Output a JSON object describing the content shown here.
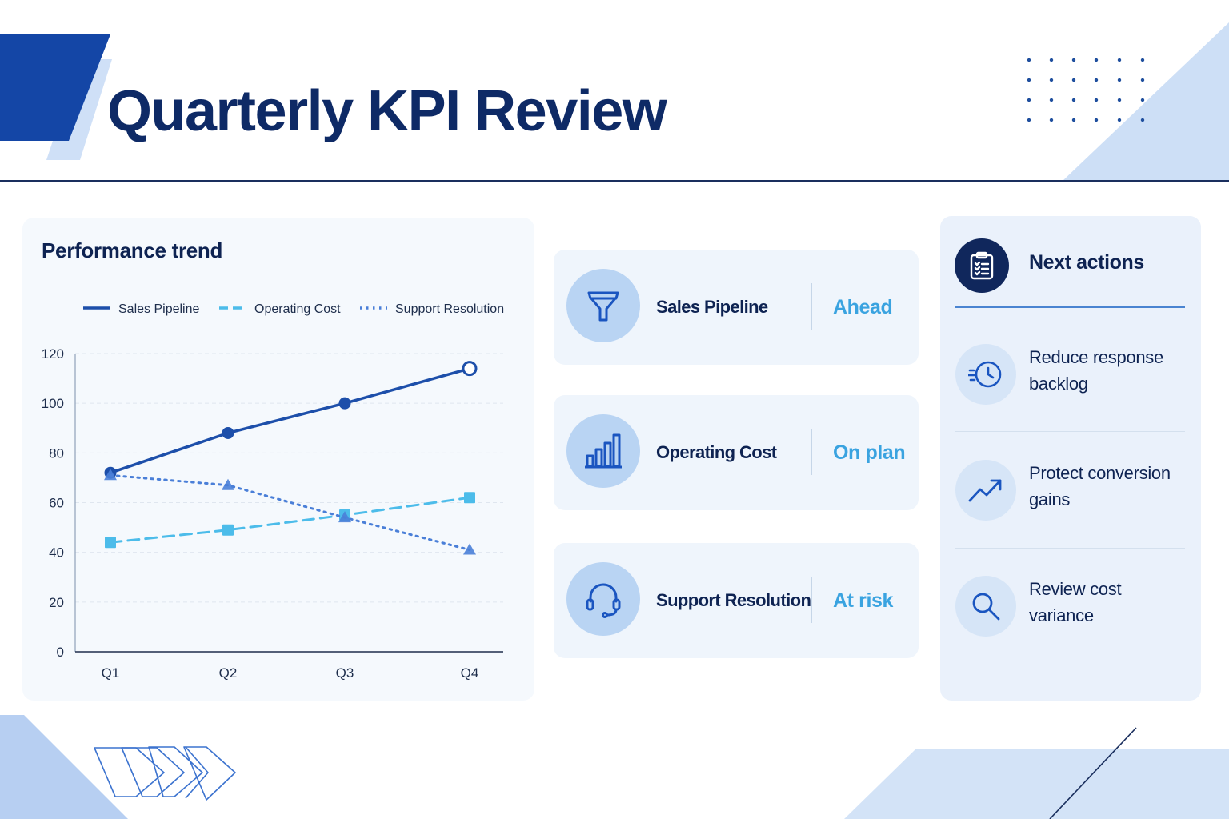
{
  "page": {
    "title": "Quarterly KPI Review"
  },
  "chart_data": {
    "type": "line",
    "title": "Performance trend",
    "categories": [
      "Q1",
      "Q2",
      "Q3",
      "Q4"
    ],
    "ylim": [
      0,
      120
    ],
    "yticks": [
      0,
      20,
      40,
      60,
      80,
      100,
      120
    ],
    "grid": true,
    "legend_position": "top",
    "series": [
      {
        "name": "Sales Pipeline",
        "values": [
          72,
          88,
          100,
          114
        ],
        "color": "#1d4faa",
        "style": "solid",
        "marker": "circle"
      },
      {
        "name": "Operating Cost",
        "values": [
          44,
          49,
          55,
          62
        ],
        "color": "#4cbcea",
        "style": "dashed",
        "marker": "square"
      },
      {
        "name": "Support Resolution",
        "values": [
          71,
          67,
          54,
          41
        ],
        "color": "#4a7fd8",
        "style": "dotted",
        "marker": "triangle"
      }
    ]
  },
  "kpis": [
    {
      "label": "Sales Pipeline",
      "status": "Ahead",
      "icon": "funnel-icon"
    },
    {
      "label": "Operating Cost",
      "status": "On plan",
      "icon": "bar-chart-icon"
    },
    {
      "label": "Support Resolution",
      "status": "At risk",
      "icon": "headset-icon"
    }
  ],
  "actions": {
    "title": "Next actions",
    "icon": "clipboard-icon",
    "items": [
      {
        "text": "Reduce response backlog",
        "icon": "clock-icon"
      },
      {
        "text": "Protect conversion gains",
        "icon": "trend-up-icon"
      },
      {
        "text": "Review cost variance",
        "icon": "magnifier-icon"
      }
    ]
  },
  "colors": {
    "navy": "#0e2a66",
    "brand_blue": "#1446a6",
    "accent_light": "#4cbcea",
    "panel": "#f4f8fd"
  }
}
